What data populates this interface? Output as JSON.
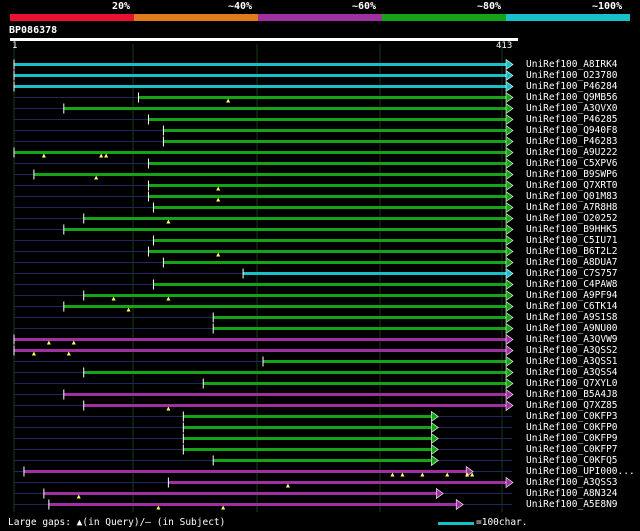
{
  "legend": {
    "labels": [
      "20%",
      "~40%",
      "~60%",
      "~80%",
      "~100%"
    ],
    "colors": [
      "#e8122e",
      "#e07a1a",
      "#a030a0",
      "#17a317",
      "#18c0c8"
    ]
  },
  "query": {
    "name": "BP086378",
    "start": "1",
    "end": "413"
  },
  "hits": [
    {
      "name": "UniRef100_A8IRK4",
      "color": "#18c0c8",
      "gaps": []
    },
    {
      "name": "UniRef100_O23780",
      "color": "#18c0c8",
      "gaps": []
    },
    {
      "name": "UniRef100_P46284",
      "color": "#18c0c8",
      "gaps": []
    },
    {
      "name": "UniRef100_Q9MB56",
      "color": "#17a317",
      "gaps": [
        {
          "t": "q",
          "x": 0.43
        }
      ]
    },
    {
      "name": "UniRef100_A3QVX0",
      "color": "#17a317",
      "gaps": []
    },
    {
      "name": "UniRef100_P46285",
      "color": "#17a317",
      "gaps": []
    },
    {
      "name": "UniRef100_Q940F8",
      "color": "#17a317",
      "gaps": []
    },
    {
      "name": "UniRef100_P46283",
      "color": "#17a317",
      "gaps": []
    },
    {
      "name": "UniRef100_A9U222",
      "color": "#17a317",
      "gaps": [
        {
          "t": "q",
          "x": 0.06
        },
        {
          "t": "q",
          "x": 0.175
        },
        {
          "t": "q",
          "x": 0.185
        }
      ]
    },
    {
      "name": "UniRef100_C5XPV6",
      "color": "#17a317",
      "gaps": []
    },
    {
      "name": "UniRef100_B9SWP6",
      "color": "#17a317",
      "gaps": [
        {
          "t": "q",
          "x": 0.165
        }
      ]
    },
    {
      "name": "UniRef100_Q7XRT0",
      "color": "#17a317",
      "gaps": [
        {
          "t": "q",
          "x": 0.41
        }
      ]
    },
    {
      "name": "UniRef100_Q01M83",
      "color": "#17a317",
      "gaps": [
        {
          "t": "q",
          "x": 0.41
        }
      ]
    },
    {
      "name": "UniRef100_A7R8H8",
      "color": "#17a317",
      "gaps": []
    },
    {
      "name": "UniRef100_O20252",
      "color": "#17a317",
      "gaps": [
        {
          "t": "q",
          "x": 0.31
        }
      ]
    },
    {
      "name": "UniRef100_B9HHK5",
      "color": "#17a317",
      "gaps": []
    },
    {
      "name": "UniRef100_C5IU71",
      "color": "#17a317",
      "gaps": []
    },
    {
      "name": "UniRef100_B6T2L2",
      "color": "#17a317",
      "gaps": [
        {
          "t": "q",
          "x": 0.41
        }
      ]
    },
    {
      "name": "UniRef100_A8DUA7",
      "color": "#17a317",
      "gaps": []
    },
    {
      "name": "UniRef100_C7S757",
      "color": "#18c0c8",
      "gaps": []
    },
    {
      "name": "UniRef100_C4PAW8",
      "color": "#17a317",
      "gaps": []
    },
    {
      "name": "UniRef100_A9PF94",
      "color": "#17a317",
      "gaps": [
        {
          "t": "q",
          "x": 0.2
        },
        {
          "t": "q",
          "x": 0.31
        }
      ]
    },
    {
      "name": "UniRef100_C6TK14",
      "color": "#17a317",
      "gaps": [
        {
          "t": "q",
          "x": 0.23
        }
      ]
    },
    {
      "name": "UniRef100_A9S1S8",
      "color": "#17a317",
      "gaps": []
    },
    {
      "name": "UniRef100_A9NU00",
      "color": "#17a317",
      "gaps": []
    },
    {
      "name": "UniRef100_A3QVW9",
      "color": "#a030a0",
      "gaps": [
        {
          "t": "q",
          "x": 0.07
        },
        {
          "t": "q",
          "x": 0.12
        }
      ]
    },
    {
      "name": "UniRef100_A3QSS2",
      "color": "#a030a0",
      "gaps": [
        {
          "t": "q",
          "x": 0.04
        },
        {
          "t": "q",
          "x": 0.11
        }
      ]
    },
    {
      "name": "UniRef100_A3QSS1",
      "color": "#17a317",
      "gaps": []
    },
    {
      "name": "UniRef100_A3QSS4",
      "color": "#17a317",
      "gaps": []
    },
    {
      "name": "UniRef100_Q7XYL0",
      "color": "#17a317",
      "gaps": []
    },
    {
      "name": "UniRef100_B5A4J8",
      "color": "#a030a0",
      "gaps": []
    },
    {
      "name": "UniRef100_Q7XZ85",
      "color": "#a030a0",
      "gaps": [
        {
          "t": "q",
          "x": 0.31
        }
      ]
    },
    {
      "name": "UniRef100_C0KFP3",
      "color": "#17a317",
      "gaps": []
    },
    {
      "name": "UniRef100_C0KFP0",
      "color": "#17a317",
      "gaps": []
    },
    {
      "name": "UniRef100_C0KFP9",
      "color": "#17a317",
      "gaps": []
    },
    {
      "name": "UniRef100_C0KFP7",
      "color": "#17a317",
      "gaps": []
    },
    {
      "name": "UniRef100_C0KFQ5",
      "color": "#17a317",
      "gaps": []
    },
    {
      "name": "UniRef100_UPI000...",
      "color": "#a030a0",
      "gaps": [
        {
          "t": "q",
          "x": 0.76
        },
        {
          "t": "q",
          "x": 0.78
        },
        {
          "t": "q",
          "x": 0.82
        },
        {
          "t": "q",
          "x": 0.87
        },
        {
          "t": "q",
          "x": 0.91
        },
        {
          "t": "q",
          "x": 0.92
        }
      ]
    },
    {
      "name": "UniRef100_A3QSS3",
      "color": "#a030a0",
      "gaps": [
        {
          "t": "q",
          "x": 0.55
        }
      ]
    },
    {
      "name": "UniRef100_A8N324",
      "color": "#a030a0",
      "gaps": [
        {
          "t": "q",
          "x": 0.13
        }
      ]
    },
    {
      "name": "UniRef100_A5E8N9",
      "color": "#a030a0",
      "gaps": [
        {
          "t": "q",
          "x": 0.29
        },
        {
          "t": "q",
          "x": 0.42
        }
      ]
    }
  ],
  "footer": {
    "label": "Large gaps:",
    "query_gap": "▲(in Query)/",
    "subject_gap": "– (in Subject)",
    "scale": "=100char."
  }
}
